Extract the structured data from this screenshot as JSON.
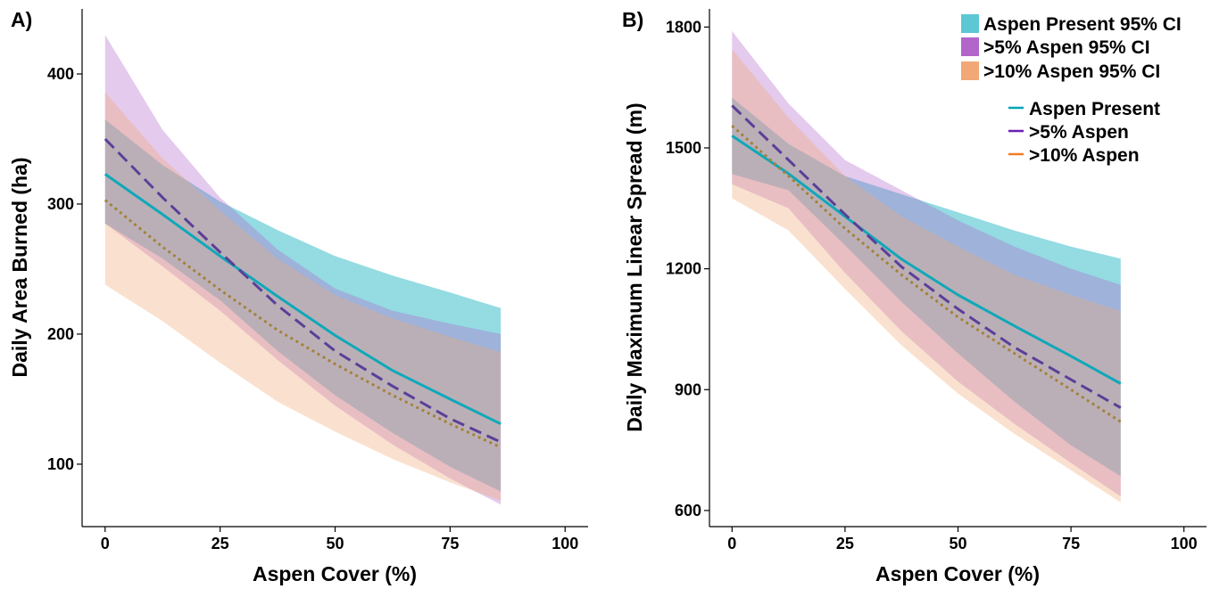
{
  "chart_data": [
    {
      "panel_label": "A)",
      "type": "line",
      "xlabel": "Aspen Cover (%)",
      "ylabel": "Daily Area Burned (ha)",
      "xlim": [
        -5,
        105
      ],
      "ylim": [
        52,
        450
      ],
      "xticks": [
        0,
        25,
        50,
        75,
        100
      ],
      "yticks": [
        100,
        200,
        300,
        400
      ],
      "x": [
        0,
        12.5,
        25,
        37.5,
        50,
        62.5,
        75,
        86
      ],
      "grid": false,
      "series": [
        {
          "name": "Aspen Present",
          "style": "solid",
          "values": [
            323,
            292,
            260,
            229,
            199,
            172,
            150,
            131
          ]
        },
        {
          "name": ">5% Aspen",
          "style": "dashed",
          "values": [
            350,
            305,
            263,
            222,
            187,
            160,
            135,
            117
          ]
        },
        {
          "name": ">10% Aspen",
          "style": "dotted",
          "values": [
            303,
            267,
            234,
            203,
            177,
            153,
            131,
            113
          ]
        }
      ],
      "ribbons": [
        {
          "name": "Aspen Present 95% CI",
          "lower": [
            285,
            258,
            226,
            187,
            153,
            124,
            98,
            79
          ],
          "upper": [
            365,
            330,
            302,
            280,
            260,
            245,
            232,
            220
          ]
        },
        {
          "name": ">5% Aspen 95% CI",
          "lower": [
            285,
            252,
            218,
            180,
            145,
            115,
            89,
            69
          ],
          "upper": [
            430,
            357,
            305,
            265,
            235,
            218,
            208,
            200
          ]
        },
        {
          "name": ">10% Aspen 95% CI",
          "lower": [
            238,
            210,
            178,
            148,
            125,
            104,
            86,
            72
          ],
          "upper": [
            386,
            335,
            295,
            258,
            230,
            212,
            198,
            186
          ]
        }
      ]
    },
    {
      "panel_label": "B)",
      "type": "line",
      "xlabel": "Aspen Cover (%)",
      "ylabel": "Daily Maximum Linear Spread (m)",
      "xlim": [
        -5,
        105
      ],
      "ylim": [
        560,
        1845
      ],
      "xticks": [
        0,
        25,
        50,
        75,
        100
      ],
      "yticks": [
        600,
        900,
        1200,
        1500,
        1800
      ],
      "x": [
        0,
        12.5,
        25,
        37.5,
        50,
        62.5,
        75,
        86
      ],
      "grid": false,
      "series": [
        {
          "name": "Aspen Present",
          "style": "solid",
          "values": [
            1530,
            1436,
            1330,
            1224,
            1135,
            1058,
            983,
            915
          ]
        },
        {
          "name": ">5% Aspen",
          "style": "dashed",
          "values": [
            1605,
            1470,
            1335,
            1205,
            1100,
            1005,
            925,
            855
          ]
        },
        {
          "name": ">10% Aspen",
          "style": "dotted",
          "values": [
            1555,
            1430,
            1300,
            1185,
            1080,
            990,
            900,
            820
          ]
        }
      ],
      "ribbons": [
        {
          "name": "Aspen Present 95% CI",
          "lower": [
            1435,
            1395,
            1258,
            1118,
            990,
            870,
            762,
            685
          ],
          "upper": [
            1625,
            1510,
            1430,
            1385,
            1340,
            1295,
            1255,
            1225
          ]
        },
        {
          "name": ">5% Aspen 95% CI",
          "lower": [
            1410,
            1350,
            1190,
            1045,
            920,
            815,
            718,
            635
          ],
          "upper": [
            1790,
            1610,
            1470,
            1395,
            1320,
            1255,
            1200,
            1160
          ]
        },
        {
          "name": ">10% Aspen 95% CI",
          "lower": [
            1375,
            1295,
            1150,
            1010,
            890,
            790,
            700,
            620
          ],
          "upper": [
            1745,
            1575,
            1430,
            1330,
            1255,
            1185,
            1135,
            1095
          ]
        }
      ]
    }
  ],
  "legend": {
    "position": "top-right",
    "fill_items": [
      {
        "label": "Aspen Present 95% CI",
        "color": "#5bc8d3"
      },
      {
        "label": ">5% Aspen 95% CI",
        "color": "#b266cc"
      },
      {
        "label": ">10% Aspen 95% CI",
        "color": "#f2a875"
      }
    ],
    "line_items": [
      {
        "label": "Aspen Present",
        "color": "#00a5b8"
      },
      {
        "label": ">5% Aspen",
        "color": "#6a1eb8"
      },
      {
        "label": ">10% Aspen",
        "color": "#ef7d27"
      }
    ]
  },
  "colors": {
    "aspen_present_fill": "#5bc8d3",
    "aspen5_fill": "#b266cc",
    "aspen10_fill": "#f2a875",
    "aspen_present_line": "#0fa8b9",
    "aspen5_line": "#5b3f98",
    "aspen10_line": "#a3823a"
  }
}
